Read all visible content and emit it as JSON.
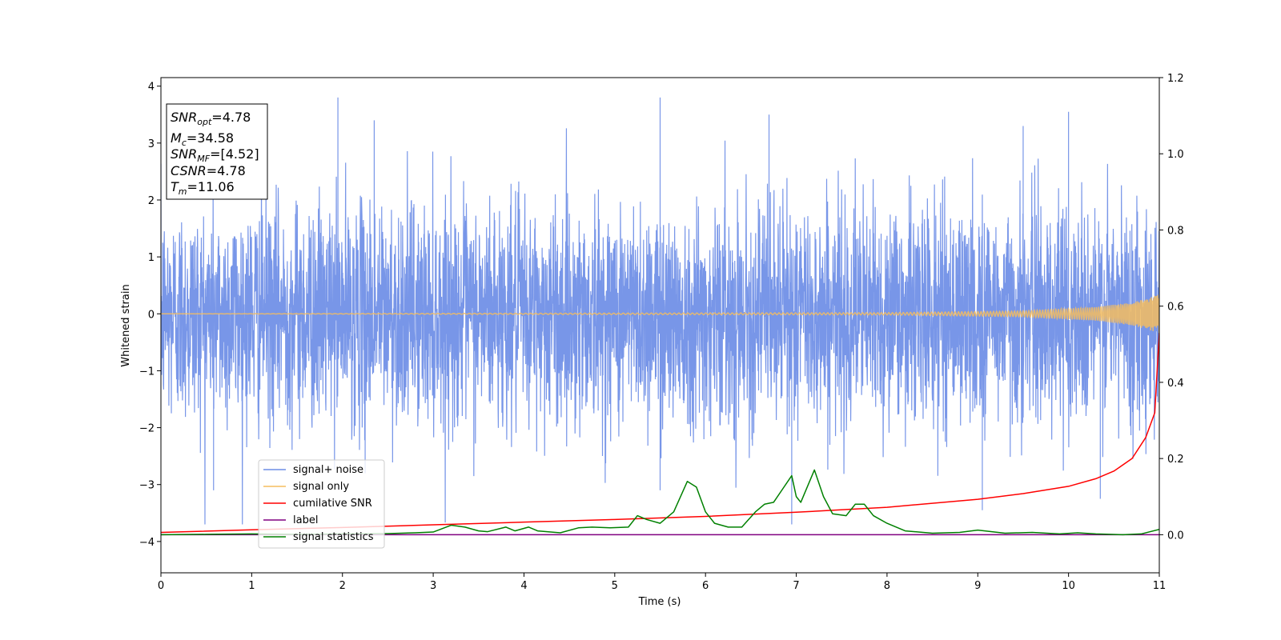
{
  "chart_data": {
    "type": "line",
    "xlabel": "Time (s)",
    "ylabel": "Whitened strain",
    "xlim": [
      0,
      11
    ],
    "ylim": [
      -4.55,
      4.15
    ],
    "y2lim": [
      -0.1,
      1.2
    ],
    "x_ticks": [
      "0",
      "1",
      "2",
      "3",
      "4",
      "5",
      "6",
      "7",
      "8",
      "9",
      "10",
      "11"
    ],
    "y_ticks": [
      "−4",
      "−3",
      "−2",
      "−1",
      "0",
      "1",
      "2",
      "3",
      "4"
    ],
    "y2_ticks": [
      "0.0",
      "0.2",
      "0.4",
      "0.6",
      "0.8",
      "1.0",
      "1.2"
    ],
    "grid": false,
    "legend_position": "lower-left",
    "annotation": {
      "snr_opt": {
        "sym": "SNR",
        "sub": "opt",
        "value": "=4.78"
      },
      "mc": {
        "sym": "M",
        "sub": "c",
        "value": "=34.58"
      },
      "snr_mf": {
        "sym": "SNR",
        "sub": "MF",
        "value": "=[4.52]"
      },
      "csnr": {
        "sym": "CSNR",
        "value": "=4.78"
      },
      "tm": {
        "sym": "T",
        "sub": "m",
        "value": "=11.06"
      }
    },
    "series": [
      {
        "name": "signal+ noise",
        "color": "#6d8de6",
        "axis": "left",
        "description": "whitened noise band, roughly −2.5 to 2.5 with spikes to ±3.8",
        "envelope_peaks_max": [
          [
            1.95,
            3.8
          ],
          [
            5.5,
            3.8
          ],
          [
            10.0,
            3.55
          ],
          [
            2.35,
            3.4
          ],
          [
            9.5,
            3.3
          ],
          [
            6.7,
            3.5
          ]
        ],
        "envelope_peaks_min": [
          [
            0.58,
            -3.1
          ],
          [
            2.25,
            -2.8
          ],
          [
            6.95,
            -3.7
          ],
          [
            9.05,
            -3.45
          ],
          [
            10.35,
            -3.25
          ],
          [
            5.5,
            -3.1
          ]
        ]
      },
      {
        "name": "signal only",
        "color": "#f5bd5f",
        "axis": "left",
        "description": "chirp that grows toward merger",
        "amplitude_at": [
          [
            0,
            0.0
          ],
          [
            8,
            0.02
          ],
          [
            9.5,
            0.05
          ],
          [
            10.3,
            0.12
          ],
          [
            10.7,
            0.2
          ],
          [
            11,
            0.34
          ]
        ]
      },
      {
        "name": "cumilative SNR",
        "color": "#ff0000",
        "axis": "right",
        "x": [
          0,
          1,
          2,
          3,
          4,
          5,
          6,
          7,
          8,
          9,
          9.5,
          10,
          10.3,
          10.5,
          10.7,
          10.85,
          10.95,
          11
        ],
        "y": [
          0.006,
          0.013,
          0.019,
          0.026,
          0.033,
          0.04,
          0.048,
          0.059,
          0.072,
          0.093,
          0.108,
          0.127,
          0.147,
          0.167,
          0.2,
          0.255,
          0.32,
          0.53
        ]
      },
      {
        "name": "label",
        "color": "#800080",
        "axis": "right",
        "x": [
          0,
          11
        ],
        "y": [
          0,
          0
        ]
      },
      {
        "name": "signal statistics",
        "color": "#008000",
        "axis": "right",
        "x": [
          0,
          0.5,
          1.0,
          1.5,
          2.0,
          2.5,
          2.8,
          3.0,
          3.2,
          3.35,
          3.5,
          3.6,
          3.8,
          3.9,
          4.05,
          4.15,
          4.4,
          4.6,
          4.75,
          4.95,
          5.15,
          5.25,
          5.35,
          5.5,
          5.65,
          5.8,
          5.9,
          6.0,
          6.1,
          6.25,
          6.4,
          6.55,
          6.65,
          6.75,
          6.85,
          6.95,
          7.0,
          7.05,
          7.2,
          7.3,
          7.4,
          7.55,
          7.65,
          7.75,
          7.85,
          8.0,
          8.2,
          8.5,
          8.8,
          9.0,
          9.3,
          9.6,
          9.9,
          10.1,
          10.3,
          10.6,
          10.8,
          11
        ],
        "y": [
          0.0,
          0.001,
          0.002,
          0.001,
          0.002,
          0.003,
          0.005,
          0.007,
          0.025,
          0.02,
          0.01,
          0.008,
          0.02,
          0.01,
          0.02,
          0.01,
          0.005,
          0.018,
          0.02,
          0.018,
          0.02,
          0.05,
          0.04,
          0.03,
          0.06,
          0.14,
          0.125,
          0.06,
          0.03,
          0.02,
          0.02,
          0.06,
          0.08,
          0.085,
          0.12,
          0.155,
          0.1,
          0.085,
          0.17,
          0.1,
          0.055,
          0.05,
          0.08,
          0.08,
          0.05,
          0.03,
          0.01,
          0.004,
          0.006,
          0.012,
          0.004,
          0.006,
          0.002,
          0.005,
          0.002,
          0.0,
          0.002,
          0.014
        ]
      }
    ]
  }
}
